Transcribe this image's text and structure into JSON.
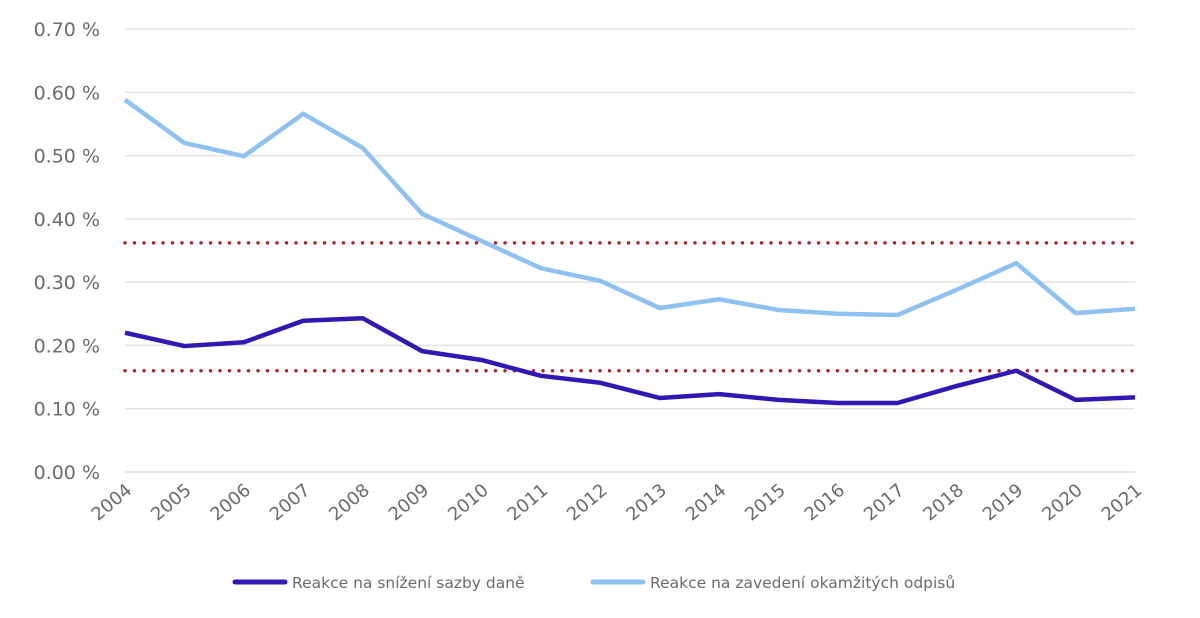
{
  "chart_data": {
    "type": "line",
    "title": "",
    "xlabel": "",
    "ylabel": "",
    "ylim": [
      0,
      0.7
    ],
    "y_ticks": [
      "0.00 %",
      "0.10 %",
      "0.20 %",
      "0.30 %",
      "0.40 %",
      "0.50 %",
      "0.60 %",
      "0.70 %"
    ],
    "y_tick_values": [
      0,
      0.1,
      0.2,
      0.3,
      0.4,
      0.5,
      0.6,
      0.7
    ],
    "grid": true,
    "legend_position": "bottom",
    "categories": [
      "2004",
      "2005",
      "2006",
      "2007",
      "2008",
      "2009",
      "2010",
      "2011",
      "2012",
      "2013",
      "2014",
      "2015",
      "2016",
      "2017",
      "2018",
      "2019",
      "2020",
      "2021"
    ],
    "series": [
      {
        "name": "Reakce na snížení sazby daně",
        "color": "#3217b5",
        "values": [
          0.22,
          0.199,
          0.205,
          0.239,
          0.243,
          0.191,
          0.177,
          0.152,
          0.141,
          0.117,
          0.123,
          0.114,
          0.109,
          0.109,
          0.136,
          0.16,
          0.114,
          0.118
        ]
      },
      {
        "name": "Reakce na zavedení okamžitých odpisů",
        "color": "#8ec1f2",
        "values": [
          0.588,
          0.52,
          0.499,
          0.566,
          0.512,
          0.408,
          0.365,
          0.322,
          0.302,
          0.259,
          0.273,
          0.256,
          0.25,
          0.248,
          0.288,
          0.33,
          0.251,
          0.258
        ]
      }
    ],
    "reference_lines": [
      {
        "value": 0.362,
        "color": "#b0222e",
        "style": "dotted"
      },
      {
        "value": 0.16,
        "color": "#b0222e",
        "style": "dotted"
      }
    ]
  }
}
